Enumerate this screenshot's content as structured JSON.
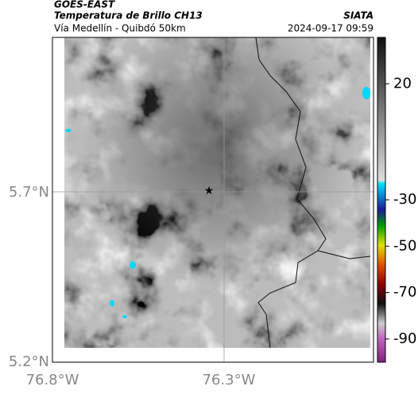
{
  "header": {
    "satellite": "GOES-EAST",
    "title": "Temperatura de Brillo CH13",
    "subtitle": "Vía Medellín - Quibdó 50km",
    "source": "SIATA",
    "datetime": "2024-09-17 09:59"
  },
  "map": {
    "lat_labels": [
      "5.7°N",
      "5.2°N"
    ],
    "lon_labels": [
      "76.8°W",
      "76.3°W"
    ]
  },
  "colorbar": {
    "range": [
      40,
      -100
    ],
    "ticks": [
      20,
      -30,
      -50,
      -70,
      -90
    ]
  }
}
